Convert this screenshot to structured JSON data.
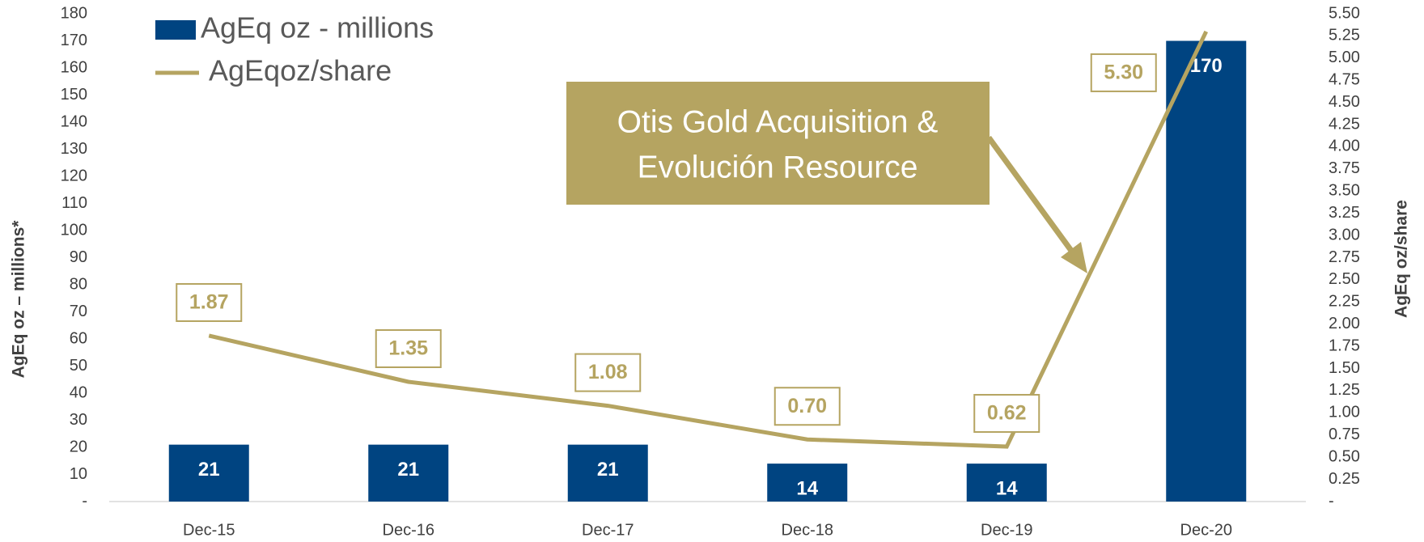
{
  "chart_data": {
    "type": "bar-line",
    "categories": [
      "Dec-15",
      "Dec-16",
      "Dec-17",
      "Dec-18",
      "Dec-19",
      "Dec-20"
    ],
    "series": [
      {
        "name": "AgEq oz - millions",
        "color": "#004481",
        "type": "bar",
        "values": [
          21,
          21,
          21,
          14,
          14,
          170
        ]
      },
      {
        "name": "AgEqoz/share",
        "color": "#b5a461",
        "type": "line",
        "axis": "y2",
        "values": [
          1.87,
          1.35,
          1.08,
          0.7,
          0.62,
          5.3
        ],
        "value_labels": [
          "1.87",
          "1.35",
          "1.08",
          "0.70",
          "0.62",
          "5.30"
        ]
      }
    ],
    "ylabel": "AgEq oz – millions*",
    "y2label": "AgEq oz/share",
    "ylim": [
      0,
      180
    ],
    "yticks": [
      {
        "value": 0,
        "label": "-"
      },
      10,
      20,
      30,
      40,
      50,
      60,
      70,
      80,
      90,
      100,
      110,
      120,
      130,
      140,
      150,
      160,
      170,
      180
    ],
    "y2lim": [
      0,
      5.5
    ],
    "y2ticks": [
      {
        "value": 0,
        "label": "-"
      },
      {
        "value": 0.25,
        "label": "0.25"
      },
      {
        "value": 0.5,
        "label": "0.50"
      },
      {
        "value": 0.75,
        "label": "0.75"
      },
      {
        "value": 1.0,
        "label": "1.00"
      },
      {
        "value": 1.25,
        "label": "1.25"
      },
      {
        "value": 1.5,
        "label": "1.50"
      },
      {
        "value": 1.75,
        "label": "1.75"
      },
      {
        "value": 2.0,
        "label": "2.00"
      },
      {
        "value": 2.25,
        "label": "2.25"
      },
      {
        "value": 2.5,
        "label": "2.50"
      },
      {
        "value": 2.75,
        "label": "2.75"
      },
      {
        "value": 3.0,
        "label": "3.00"
      },
      {
        "value": 3.25,
        "label": "3.25"
      },
      {
        "value": 3.5,
        "label": "3.50"
      },
      {
        "value": 3.75,
        "label": "3.75"
      },
      {
        "value": 4.0,
        "label": "4.00"
      },
      {
        "value": 4.25,
        "label": "4.25"
      },
      {
        "value": 4.5,
        "label": "4.50"
      },
      {
        "value": 4.75,
        "label": "4.75"
      },
      {
        "value": 5.0,
        "label": "5.00"
      },
      {
        "value": 5.25,
        "label": "5.25"
      },
      {
        "value": 5.5,
        "label": "5.50"
      }
    ],
    "annotation": {
      "lines": [
        "Otis Gold Acquisition &",
        "Evolución Resource"
      ],
      "color": "#b5a461"
    },
    "legend": "top-left"
  }
}
